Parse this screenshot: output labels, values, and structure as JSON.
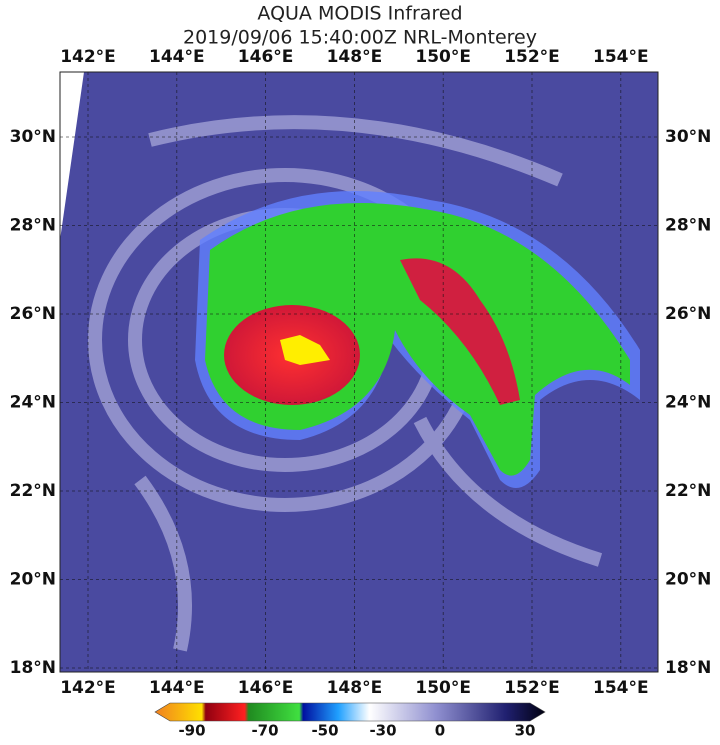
{
  "title": [
    "AQUA MODIS Infrared",
    "2019/09/06 15:40:00Z NRL-Monterey"
  ],
  "longitude_labels": [
    "142°E",
    "144°E",
    "146°E",
    "148°E",
    "150°E",
    "152°E",
    "154°E"
  ],
  "latitude_labels": [
    "30°N",
    "28°N",
    "26°N",
    "24°N",
    "22°N",
    "20°N",
    "18°N"
  ],
  "colorbar": {
    "labels": [
      "-90",
      "-70",
      "-50",
      "-30",
      "0",
      "30"
    ]
  }
}
